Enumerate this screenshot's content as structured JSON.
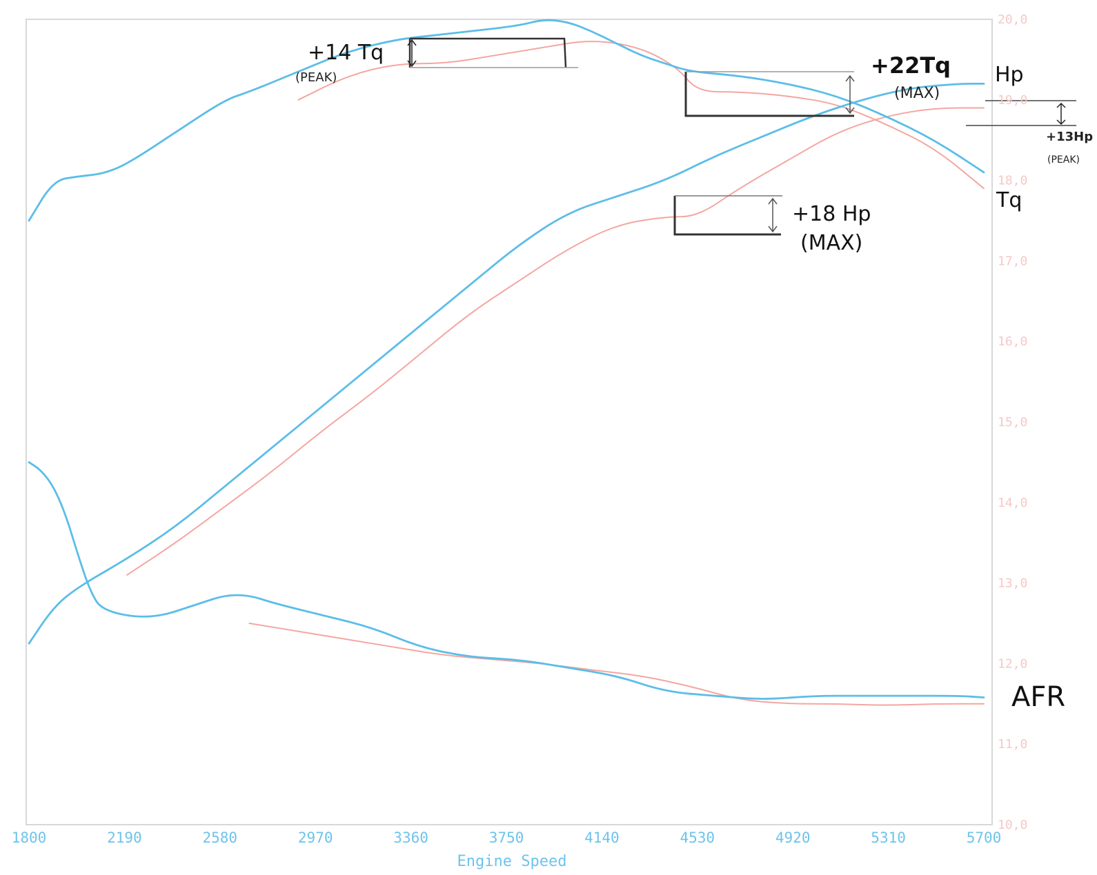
{
  "chart_data": {
    "type": "line",
    "xlabel": "Engine Speed",
    "xlim": [
      1800,
      5700
    ],
    "x_ticks": [
      "1800",
      "2190",
      "2580",
      "2970",
      "3360",
      "3750",
      "4140",
      "4530",
      "4920",
      "5310",
      "5700"
    ],
    "ylim_right": [
      10.0,
      20.0
    ],
    "y_ticks_right": [
      "20,0",
      "19,0",
      "18,0",
      "17,0",
      "16,0",
      "15,0",
      "14,0",
      "13,0",
      "12,0",
      "11,0",
      "10,0"
    ],
    "grid": false,
    "colors": {
      "after": "#5bbde8",
      "before": "#f4a6a0",
      "axis": "#6ec3ea",
      "ytick": "#f6c8c8",
      "annotation": "#111111"
    },
    "series": [
      {
        "name": "Tq",
        "run": "after",
        "x": [
          1800,
          1900,
          2000,
          2100,
          2200,
          2400,
          2600,
          2700,
          2900,
          3100,
          3300,
          3450,
          3600,
          3800,
          3900,
          4000,
          4100,
          4200,
          4300,
          4400,
          4500,
          4700,
          4900,
          5100,
          5300,
          5500,
          5700
        ],
        "y": [
          17.5,
          18.0,
          18.05,
          18.08,
          18.2,
          18.6,
          19.0,
          19.1,
          19.35,
          19.6,
          19.75,
          19.8,
          19.85,
          19.92,
          20.0,
          19.97,
          19.85,
          19.7,
          19.55,
          19.45,
          19.35,
          19.3,
          19.2,
          19.05,
          18.8,
          18.5,
          18.1
        ]
      },
      {
        "name": "Tq",
        "run": "before",
        "x": [
          2900,
          3100,
          3300,
          3500,
          3700,
          3900,
          4100,
          4300,
          4450,
          4530,
          4700,
          4900,
          5100,
          5300,
          5500,
          5700
        ],
        "y": [
          19.0,
          19.3,
          19.45,
          19.45,
          19.55,
          19.65,
          19.75,
          19.65,
          19.4,
          19.1,
          19.1,
          19.05,
          18.95,
          18.7,
          18.4,
          17.9
        ]
      },
      {
        "name": "Hp",
        "run": "after",
        "x": [
          1800,
          1900,
          2000,
          2200,
          2400,
          2600,
          2800,
          3000,
          3200,
          3400,
          3600,
          3800,
          4000,
          4200,
          4400,
          4600,
          4800,
          5000,
          5200,
          5400,
          5600,
          5700
        ],
        "y": [
          12.25,
          12.7,
          12.95,
          13.3,
          13.7,
          14.2,
          14.7,
          15.2,
          15.7,
          16.2,
          16.7,
          17.2,
          17.6,
          17.8,
          18.0,
          18.3,
          18.55,
          18.8,
          19.0,
          19.15,
          19.2,
          19.2
        ]
      },
      {
        "name": "Hp",
        "run": "before",
        "x": [
          2200,
          2400,
          2600,
          2800,
          3000,
          3200,
          3400,
          3600,
          3800,
          4000,
          4200,
          4400,
          4530,
          4700,
          4900,
          5100,
          5300,
          5500,
          5700
        ],
        "y": [
          13.1,
          13.5,
          13.95,
          14.4,
          14.9,
          15.35,
          15.85,
          16.35,
          16.75,
          17.15,
          17.45,
          17.55,
          17.55,
          17.9,
          18.25,
          18.6,
          18.8,
          18.9,
          18.9
        ]
      },
      {
        "name": "AFR",
        "run": "after",
        "x": [
          1800,
          1850,
          1900,
          1950,
          2000,
          2050,
          2100,
          2300,
          2500,
          2600,
          2700,
          2800,
          3000,
          3200,
          3400,
          3600,
          3800,
          4000,
          4200,
          4400,
          4600,
          4800,
          5000,
          5200,
          5400,
          5600,
          5700
        ],
        "y": [
          14.5,
          14.4,
          14.2,
          13.85,
          13.35,
          12.9,
          12.65,
          12.55,
          12.75,
          12.85,
          12.85,
          12.75,
          12.6,
          12.45,
          12.2,
          12.08,
          12.05,
          11.95,
          11.85,
          11.65,
          11.6,
          11.55,
          11.6,
          11.6,
          11.6,
          11.6,
          11.58
        ]
      },
      {
        "name": "AFR",
        "run": "before",
        "x": [
          2700,
          2900,
          3100,
          3300,
          3500,
          3700,
          3900,
          4100,
          4300,
          4500,
          4700,
          4900,
          5100,
          5300,
          5500,
          5700
        ],
        "y": [
          12.5,
          12.4,
          12.3,
          12.2,
          12.1,
          12.05,
          12.0,
          11.92,
          11.85,
          11.72,
          11.55,
          11.5,
          11.5,
          11.48,
          11.5,
          11.5
        ]
      }
    ],
    "series_labels": [
      "Hp",
      "Tq",
      "AFR"
    ],
    "annotations": [
      {
        "text": "+14 Tq",
        "sub": "(PEAK)"
      },
      {
        "text": "+22Tq",
        "sub": "(MAX)"
      },
      {
        "text": "+18 Hp",
        "sub": "(MAX)"
      },
      {
        "text": "+13Hp",
        "sub": "(PEAK)"
      }
    ]
  }
}
